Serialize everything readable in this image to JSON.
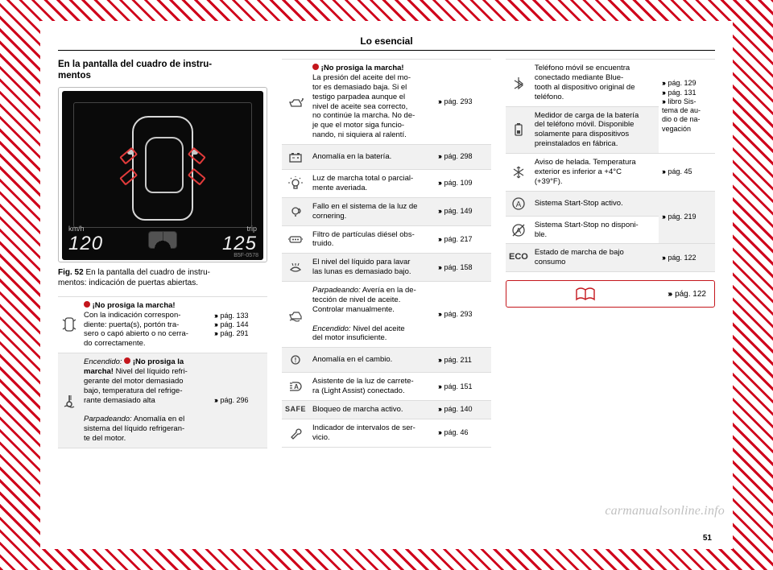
{
  "page": {
    "header": "Lo esencial",
    "number": "51"
  },
  "watermark": "carmanualsonline.info",
  "col1": {
    "title": "En la pantalla del cuadro de instru-\nmentos",
    "figure": {
      "left_unit": "km/h",
      "left_value": "120",
      "right_unit": "trip",
      "right_value": "125",
      "code": "B5F-0578",
      "caption_num": "Fig. 52",
      "caption_text": "En la pantalla del cuadro de instru-\nmentos: indicación de puertas abiertas."
    },
    "table": [
      {
        "icon": "door",
        "html": "<span class=\"reddot\"></span> <b>¡No prosiga la marcha!</b><br>Con la indicación correspon-<br>diente: puerta(s), portón tra-<br>sero o capó abierto o no cerra-<br>do correctamente.",
        "refs": [
          "pág. 133",
          "pág. 144",
          "pág. 291"
        ]
      },
      {
        "icon": "temp",
        "html": "<em>Encendido:</em> <span class=\"reddot\"></span> <b>¡No prosiga la<br>marcha!</b> Nivel del líquido refri-<br>gerante del motor demasiado<br>bajo, temperatura del refrige-<br>rante demasiado alta<br><br><em>Parpadeando:</em> Anomalía en el<br>sistema del líquido refrigeran-<br>te del motor.",
        "refs": [
          "pág. 296"
        ]
      }
    ]
  },
  "col2": {
    "table": [
      {
        "icon": "oilcan",
        "html": "<span class=\"reddot\"></span> <b>¡No prosiga la marcha!</b><br>La presión del aceite del mo-<br>tor es demasiado baja. Si el<br>testigo parpadea aunque el<br>nivel de aceite sea correcto,<br>no continúe la marcha. No de-<br>je que el motor siga funcio-<br>nando, ni siquiera al ralentí.",
        "refs": [
          "pág. 293"
        ]
      },
      {
        "icon": "battery",
        "html": "Anomalía en la batería.",
        "refs": [
          "pág. 298"
        ]
      },
      {
        "icon": "bulb",
        "html": "Luz de marcha total o parcial-<br>mente averiada.",
        "refs": [
          "pág. 109"
        ]
      },
      {
        "icon": "corner",
        "html": "Fallo en el sistema de la luz de<br>cornering.",
        "refs": [
          "pág. 149"
        ]
      },
      {
        "icon": "dpf",
        "html": "Filtro de partículas diésel obs-<br>truido.",
        "refs": [
          "pág. 217"
        ]
      },
      {
        "icon": "washer",
        "html": "El nivel del líquido para lavar<br>las lunas es demasiado bajo.",
        "refs": [
          "pág. 158"
        ]
      },
      {
        "icon": "oilwave",
        "html": "<em>Parpadeando:</em> Avería en la de-<br>tección de nivel de aceite.<br>Controlar manualmente.<br><br><em>Encendido:</em> Nivel del aceite<br>del motor insuficiente.",
        "refs": [
          "pág. 293"
        ]
      },
      {
        "icon": "gear",
        "html": "Anomalía en el cambio.",
        "refs": [
          "pág. 211"
        ]
      },
      {
        "icon": "lightassist",
        "html": "Asistente de la luz de carrete-<br>ra (Light Assist) conectado.",
        "refs": [
          "pág. 151"
        ]
      },
      {
        "icon": "safe",
        "html": "Bloqueo de marcha activo.",
        "refs": [
          "pág. 140"
        ]
      },
      {
        "icon": "wrench",
        "html": "Indicador de intervalos de ser-<br>vicio.",
        "refs": [
          "pág. 46"
        ]
      }
    ]
  },
  "col3": {
    "table": [
      {
        "icon": "bluetooth",
        "html": "Teléfono móvil se encuentra<br>conectado mediante Blue-<br>tooth al dispositivo original de<br>teléfono.",
        "refs": [
          "pág. 129",
          "pág. 131",
          "libro Sis-<br>tema de au-<br>dio o de na-<br>vegación"
        ],
        "rowspan_ref": 2
      },
      {
        "icon": "phonebatt",
        "html": "Medidor de carga de la batería<br>del teléfono móvil. Disponible<br>solamente para dispositivos<br>preinstalados en fábrica."
      },
      {
        "icon": "frost",
        "html": "Aviso de helada. Temperatura<br>exterior es inferior a +4°C<br>(+39°F).",
        "refs": [
          "pág. 45"
        ]
      },
      {
        "icon": "startstop_a",
        "html": "Sistema Start-Stop activo.",
        "refs": [
          "pág. 219"
        ],
        "rowspan_ref": 2
      },
      {
        "icon": "startstop_off",
        "html": "Sistema Start-Stop no disponi-<br>ble."
      },
      {
        "icon": "eco",
        "html": "Estado de marcha de bajo<br>consumo",
        "refs": [
          "pág. 122"
        ]
      }
    ],
    "refbox": {
      "ref": "pág. 122"
    }
  }
}
